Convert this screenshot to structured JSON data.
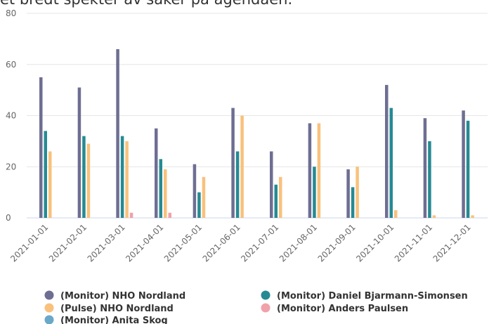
{
  "chart_data": {
    "type": "bar",
    "title": "et bredt spekter av saker på agendaen.",
    "categories": [
      "2021-01-01",
      "2021-02-01",
      "2021-03-01",
      "2021-04-01",
      "2021-05-01",
      "2021-06-01",
      "2021-07-01",
      "2021-08-01",
      "2021-09-01",
      "2021-10-01",
      "2021-11-01",
      "2021-12-01"
    ],
    "series": [
      {
        "name": "(Monitor) NHO Nordland",
        "color": "#6e6e93",
        "values": [
          55,
          51,
          66,
          35,
          21,
          43,
          26,
          37,
          19,
          52,
          39,
          42
        ]
      },
      {
        "name": "(Monitor) Daniel Bjarmann-Simonsen",
        "color": "#268a93",
        "values": [
          34,
          32,
          32,
          23,
          10,
          26,
          13,
          20,
          12,
          43,
          30,
          38
        ]
      },
      {
        "name": "(Pulse) NHO Nordland",
        "color": "#f9c17c",
        "values": [
          26,
          29,
          30,
          19,
          16,
          40,
          16,
          37,
          20,
          3,
          1,
          1
        ]
      },
      {
        "name": "(Monitor) Anders Paulsen",
        "color": "#f0a1aa",
        "values": [
          0,
          0,
          2,
          2,
          0,
          0,
          0,
          0,
          0,
          0,
          0,
          0
        ]
      },
      {
        "name": "(Monitor) Anita Skog",
        "color": "#6aa8c9",
        "values": [
          0,
          0,
          0,
          0,
          0,
          0,
          0,
          0,
          0,
          0,
          0,
          0
        ]
      }
    ],
    "ylim": [
      0,
      80
    ],
    "yticks": [
      0,
      20,
      40,
      60,
      80
    ],
    "grid": true
  }
}
